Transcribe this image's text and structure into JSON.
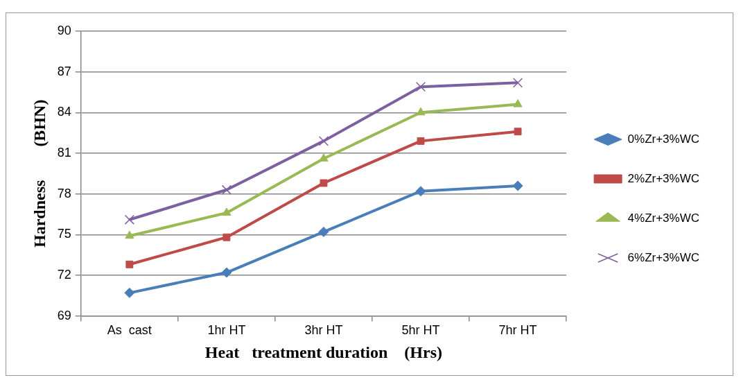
{
  "chart_data": {
    "type": "line",
    "xlabel": "Heat   treatment duration    (Hrs)",
    "ylabel": "Hardness        (BHN)",
    "categories": [
      "As  cast",
      "1hr HT",
      "3hr HT",
      "5hr HT",
      "7hr HT"
    ],
    "series": [
      {
        "name": "0%Zr+3%WC",
        "color": "#4a7ebb",
        "marker": "diamond",
        "values": [
          70.7,
          72.2,
          75.2,
          78.2,
          78.6
        ]
      },
      {
        "name": "2%Zr+3%WC",
        "color": "#be4b48",
        "marker": "square",
        "values": [
          72.8,
          74.8,
          78.8,
          81.9,
          82.6
        ]
      },
      {
        "name": "4%Zr+3%WC",
        "color": "#98b954",
        "marker": "triangle",
        "values": [
          74.9,
          76.6,
          80.6,
          84.0,
          84.6
        ]
      },
      {
        "name": "6%Zr+3%WC",
        "color": "#7d60a0",
        "marker": "cross",
        "values": [
          76.1,
          78.3,
          81.9,
          85.9,
          86.2
        ]
      }
    ],
    "ylim": [
      69,
      90
    ],
    "yticks": [
      69,
      72,
      75,
      78,
      81,
      84,
      87,
      90
    ],
    "grid": "y",
    "legend": "right",
    "line_style": "solid"
  }
}
